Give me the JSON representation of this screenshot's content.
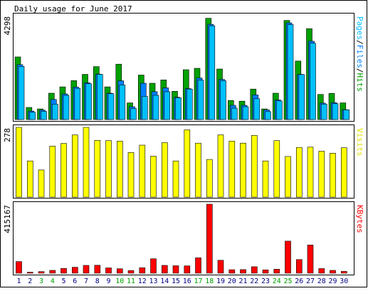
{
  "title": "Daily usage for June 2017",
  "chart_data": [
    {
      "type": "bar",
      "panel": "hits",
      "ymax_label": "4298",
      "ylim": [
        0,
        4298
      ],
      "legend": [
        "Pages",
        "Files",
        "Hits"
      ],
      "legend_colors": [
        "#00c0ff",
        "#0080ff",
        "#00a000"
      ],
      "grid": false,
      "categories": [
        "1",
        "2",
        "3",
        "4",
        "5",
        "6",
        "7",
        "8",
        "9",
        "10",
        "11",
        "12",
        "13",
        "14",
        "15",
        "16",
        "17",
        "18",
        "19",
        "20",
        "21",
        "22",
        "23",
        "24",
        "25",
        "26",
        "27",
        "28",
        "29",
        "30"
      ],
      "series": [
        {
          "name": "Hits",
          "color": "#00a000",
          "values": [
            2590,
            500,
            440,
            1090,
            1350,
            1610,
            1870,
            2190,
            1350,
            2290,
            690,
            1840,
            1500,
            1640,
            1170,
            2060,
            2120,
            4190,
            2090,
            790,
            760,
            1260,
            440,
            1090,
            4100,
            2420,
            3760,
            1040,
            1080,
            690
          ]
        },
        {
          "name": "Files",
          "color": "#0080ff",
          "values": [
            2270,
            350,
            390,
            830,
            1060,
            1340,
            1520,
            1880,
            1090,
            1600,
            530,
            1500,
            1150,
            1310,
            920,
            1280,
            1720,
            3940,
            1660,
            590,
            590,
            1020,
            400,
            810,
            4000,
            1870,
            3240,
            680,
            700,
            410
          ]
        },
        {
          "name": "Pages",
          "color": "#00c0ff",
          "values": [
            2200,
            300,
            340,
            640,
            1000,
            1290,
            1480,
            1870,
            1070,
            1430,
            460,
            960,
            1000,
            1150,
            900,
            1260,
            1630,
            3880,
            1610,
            470,
            530,
            860,
            330,
            770,
            3930,
            1860,
            3160,
            640,
            660,
            400
          ]
        }
      ]
    },
    {
      "type": "bar",
      "panel": "visits",
      "ymax_label": "278",
      "ylim": [
        0,
        278
      ],
      "legend": [
        "Visits"
      ],
      "legend_colors": [
        "#e0e000"
      ],
      "grid": false,
      "categories": [
        "1",
        "2",
        "3",
        "4",
        "5",
        "6",
        "7",
        "8",
        "9",
        "10",
        "11",
        "12",
        "13",
        "14",
        "15",
        "16",
        "17",
        "18",
        "19",
        "20",
        "21",
        "22",
        "23",
        "24",
        "25",
        "26",
        "27",
        "28",
        "29",
        "30"
      ],
      "series": [
        {
          "name": "Visits",
          "color": "#ffff00",
          "values": [
            278,
            144,
            108,
            203,
            214,
            248,
            278,
            226,
            225,
            223,
            178,
            207,
            163,
            217,
            144,
            268,
            215,
            150,
            248,
            223,
            215,
            246,
            144,
            225,
            162,
            198,
            199,
            183,
            175,
            197
          ]
        }
      ]
    },
    {
      "type": "bar",
      "panel": "kbytes",
      "ymax_label": "415167",
      "ylim": [
        0,
        415167
      ],
      "legend": [
        "KBytes"
      ],
      "legend_colors": [
        "#ff0000"
      ],
      "grid": false,
      "categories": [
        "1",
        "2",
        "3",
        "4",
        "5",
        "6",
        "7",
        "8",
        "9",
        "10",
        "11",
        "12",
        "13",
        "14",
        "15",
        "16",
        "17",
        "18",
        "19",
        "20",
        "21",
        "22",
        "23",
        "24",
        "25",
        "26",
        "27",
        "28",
        "29",
        "30"
      ],
      "series": [
        {
          "name": "KBytes",
          "color": "#ff0000",
          "values": [
            70000,
            6000,
            10000,
            17000,
            29000,
            36000,
            47000,
            48000,
            32000,
            27000,
            16000,
            33000,
            87000,
            47000,
            45000,
            44000,
            93000,
            415167,
            78000,
            21000,
            22000,
            39000,
            20000,
            24000,
            193000,
            82000,
            170000,
            28000,
            17000,
            11000
          ]
        }
      ]
    }
  ],
  "weekend_color": "#00a000",
  "weekday_color": "#000080",
  "weekend_days": [
    "3",
    "4",
    "10",
    "11",
    "17",
    "18",
    "24",
    "25"
  ]
}
